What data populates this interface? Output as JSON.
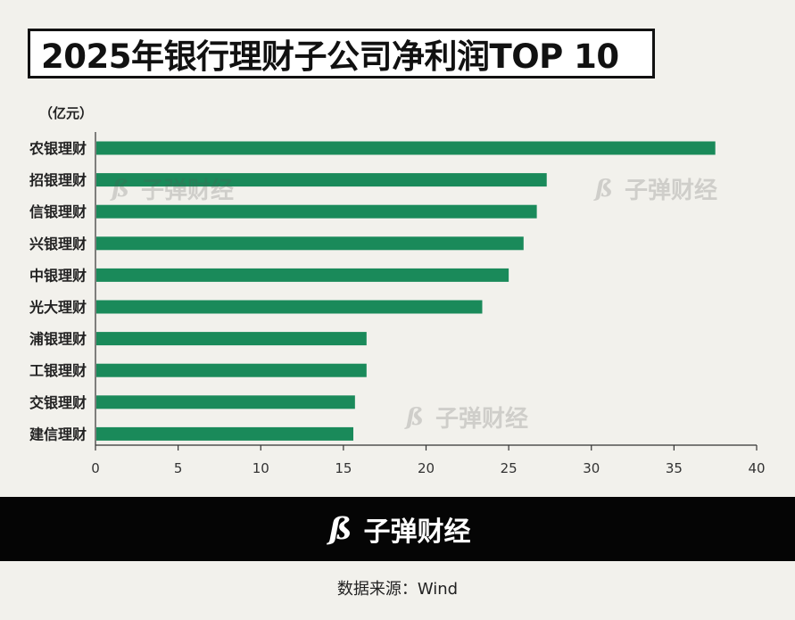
{
  "title": "2025年银行理财子公司净利润TOP 10",
  "unit_label": "（亿元）",
  "watermark": {
    "text": "子弹财经",
    "logo": "bullet-logo-icon"
  },
  "footer": {
    "brand": "子弹财经",
    "logo": "bullet-logo-icon",
    "background": "#050505"
  },
  "source": "数据来源：Wind",
  "colors": {
    "bar": "#1a8a5a",
    "axis": "#333333",
    "background": "#f2f1ec"
  },
  "chart_data": {
    "type": "bar",
    "orientation": "horizontal",
    "categories": [
      "农银理财",
      "招银理财",
      "信银理财",
      "兴银理财",
      "中银理财",
      "光大理财",
      "浦银理财",
      "工银理财",
      "交银理财",
      "建信理财"
    ],
    "values": [
      37.5,
      27.3,
      26.7,
      25.9,
      25.0,
      23.4,
      16.4,
      16.4,
      15.7,
      15.6
    ],
    "xlim": [
      0,
      40
    ],
    "xticks": [
      0,
      5,
      10,
      15,
      20,
      25,
      30,
      35,
      40
    ],
    "grid": false,
    "legend": "none"
  }
}
